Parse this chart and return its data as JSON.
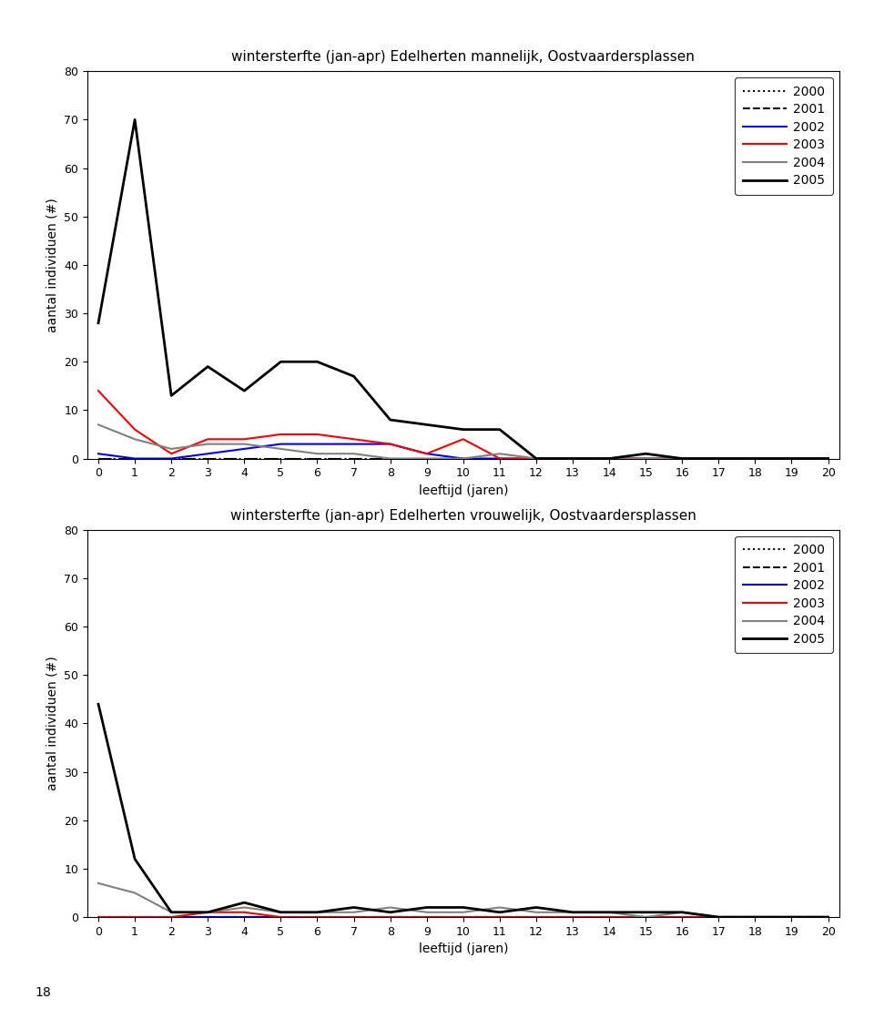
{
  "title_top": "wintersterfte (jan-apr) Edelherten mannelijk, Oostvaardersplassen",
  "title_bottom": "wintersterfte (jan-apr) Edelherten vrouwelijk, Oostvaardersplassen",
  "xlabel": "leeftijd (jaren)",
  "ylabel": "aantal individuen (#)",
  "xlim": [
    -0.3,
    20.3
  ],
  "ylim": [
    0,
    80
  ],
  "yticks": [
    0,
    10,
    20,
    30,
    40,
    50,
    60,
    70,
    80
  ],
  "xticks": [
    0,
    1,
    2,
    3,
    4,
    5,
    6,
    7,
    8,
    9,
    10,
    11,
    12,
    13,
    14,
    15,
    16,
    17,
    18,
    19,
    20
  ],
  "page_number": "18",
  "series_order": [
    "2000",
    "2001",
    "2002",
    "2003",
    "2004",
    "2005"
  ],
  "series": {
    "2000": {
      "color": "#000000",
      "linestyle": "dotted",
      "linewidth": 1.5
    },
    "2001": {
      "color": "#000000",
      "linestyle": "dashed",
      "linewidth": 1.5
    },
    "2002": {
      "color": "#0000ff",
      "linestyle": "solid",
      "linewidth": 1.5
    },
    "2003": {
      "color": "#ff0000",
      "linestyle": "solid",
      "linewidth": 1.5
    },
    "2004": {
      "color": "#808080",
      "linestyle": "solid",
      "linewidth": 1.5
    },
    "2005": {
      "color": "#000000",
      "linestyle": "solid",
      "linewidth": 2.0
    }
  },
  "data_top": {
    "2000": [
      0,
      0,
      0,
      0,
      0,
      0,
      0,
      0,
      0,
      0,
      0,
      0,
      0,
      0,
      0,
      0,
      0,
      0,
      0,
      0,
      0
    ],
    "2001": [
      0,
      0,
      0,
      0,
      0,
      0,
      0,
      0,
      0,
      0,
      0,
      0,
      0,
      0,
      0,
      0,
      0,
      0,
      0,
      0,
      0
    ],
    "2002": [
      1,
      0,
      0,
      1,
      2,
      3,
      3,
      3,
      3,
      1,
      0,
      0,
      0,
      0,
      0,
      0,
      0,
      0,
      0,
      0,
      0
    ],
    "2003": [
      14,
      6,
      1,
      4,
      4,
      5,
      5,
      4,
      3,
      1,
      4,
      0,
      0,
      0,
      0,
      0,
      0,
      0,
      0,
      0,
      0
    ],
    "2004": [
      7,
      4,
      2,
      3,
      3,
      2,
      1,
      1,
      0,
      0,
      0,
      1,
      0,
      0,
      0,
      0,
      0,
      0,
      0,
      0,
      0
    ],
    "2005": [
      28,
      70,
      13,
      19,
      14,
      20,
      20,
      17,
      8,
      7,
      6,
      6,
      0,
      0,
      0,
      1,
      0,
      0,
      0,
      0,
      0
    ]
  },
  "data_bottom": {
    "2000": [
      0,
      0,
      0,
      0,
      0,
      0,
      0,
      0,
      0,
      0,
      0,
      0,
      0,
      0,
      0,
      0,
      0,
      0,
      0,
      0,
      0
    ],
    "2001": [
      0,
      0,
      0,
      0,
      0,
      0,
      0,
      0,
      0,
      0,
      0,
      0,
      0,
      0,
      0,
      0,
      0,
      0,
      0,
      0,
      0
    ],
    "2002": [
      0,
      0,
      0,
      0,
      0,
      0,
      0,
      0,
      0,
      0,
      0,
      0,
      0,
      0,
      0,
      0,
      0,
      0,
      0,
      0,
      0
    ],
    "2003": [
      0,
      0,
      0,
      1,
      1,
      0,
      0,
      0,
      0,
      0,
      0,
      0,
      0,
      0,
      0,
      0,
      0,
      0,
      0,
      0,
      0
    ],
    "2004": [
      7,
      5,
      1,
      1,
      2,
      1,
      1,
      1,
      2,
      1,
      1,
      2,
      1,
      1,
      1,
      0,
      1,
      0,
      0,
      0,
      0
    ],
    "2005": [
      44,
      12,
      1,
      1,
      3,
      1,
      1,
      2,
      1,
      2,
      2,
      1,
      2,
      1,
      1,
      1,
      1,
      0,
      0,
      0,
      0
    ]
  },
  "figure_bg": "#ffffff",
  "panel_bg": "#ffffff",
  "title_fontsize": 11,
  "label_fontsize": 10,
  "tick_fontsize": 9,
  "legend_fontsize": 10
}
